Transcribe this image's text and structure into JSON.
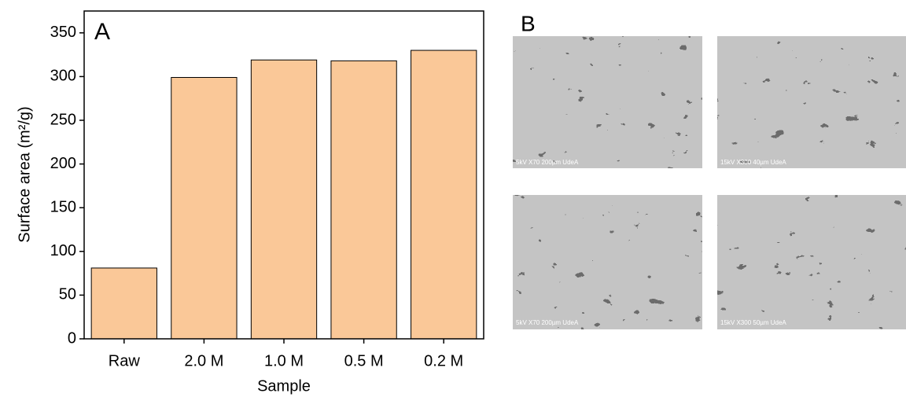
{
  "chart_data": {
    "type": "bar",
    "panel_label": "A",
    "categories": [
      "Raw",
      "2.0 M",
      "1.0 M",
      "0.5 M",
      "0.2 M"
    ],
    "values": [
      81,
      299,
      319,
      318,
      330
    ],
    "color": "#fac898",
    "x_label": "Sample",
    "y_label": "Surface area (m²/g)",
    "ylim": [
      0,
      375
    ],
    "yticks": [
      0,
      50,
      100,
      150,
      200,
      250,
      300,
      350
    ]
  },
  "micrographs": {
    "panel_label": "B",
    "captions": [
      "5kV X70 200µm UdeA",
      "15kV X300 40µm UdeA",
      "5kV X70 200µm UdeA",
      "15kV X300 50µm UdeA"
    ]
  }
}
